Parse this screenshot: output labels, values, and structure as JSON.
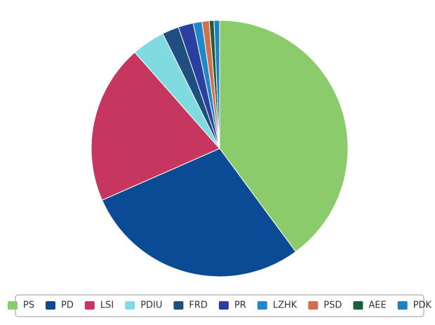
{
  "chart_data": {
    "type": "pie",
    "categories": [
      "PS",
      "PD",
      "LSI",
      "PDIU",
      "FRD",
      "PR",
      "LZHK",
      "PSD",
      "AEE",
      "PDK"
    ],
    "values": [
      39.9,
      28.5,
      20.1,
      4.2,
      2.1,
      1.9,
      1.1,
      0.9,
      0.6,
      0.7
    ],
    "colors": [
      "#8bcb6b",
      "#0b4a94",
      "#c7365f",
      "#7fdbe0",
      "#1f4f7f",
      "#2a3fa0",
      "#1e88c8",
      "#d0704f",
      "#1f5e3a",
      "#1f7fc0"
    ],
    "legend": "bottom"
  }
}
